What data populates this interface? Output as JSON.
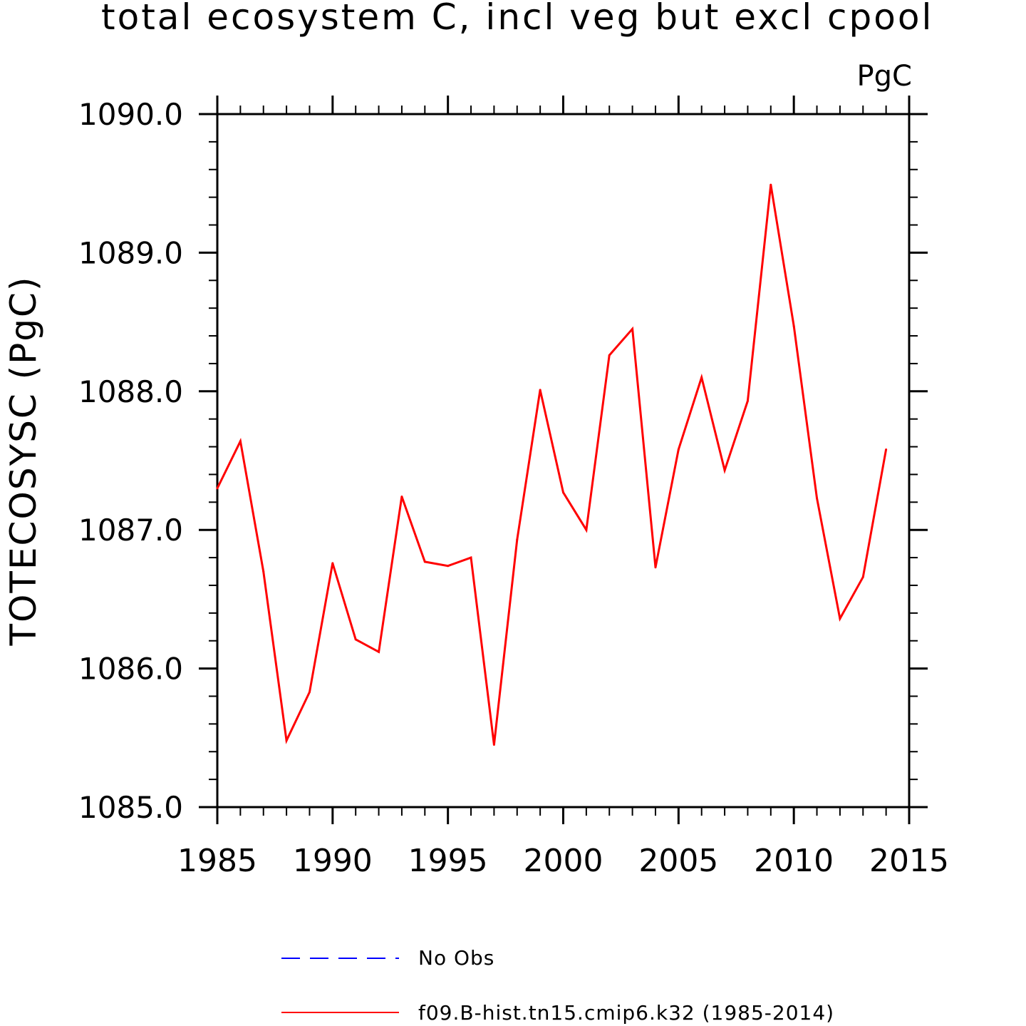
{
  "chart_data": {
    "type": "line",
    "title": "total ecosystem C, incl veg but excl cpool",
    "units_label": "PgC",
    "ylabel": "TOTECOSYSC  (PgC)",
    "xlabel": "",
    "xlim": [
      1985,
      2015
    ],
    "ylim": [
      1085.0,
      1090.0
    ],
    "x_ticks": [
      "1985",
      "1990",
      "1995",
      "2000",
      "2005",
      "2010",
      "2015"
    ],
    "y_ticks": [
      "1085.0",
      "1086.0",
      "1087.0",
      "1088.0",
      "1089.0",
      "1090.0"
    ],
    "legend": [
      {
        "label": "No Obs",
        "color": "#0000ff",
        "style": "dashed"
      },
      {
        "label": "f09.B-hist.tn15.cmip6.k32 (1985-2014)",
        "color": "#ff0000",
        "style": "solid"
      }
    ],
    "series": [
      {
        "name": "f09.B-hist.tn15.cmip6.k32 (1985-2014)",
        "color": "#ff0000",
        "x": [
          1985,
          1986,
          1987,
          1988,
          1989,
          1990,
          1991,
          1992,
          1993,
          1994,
          1995,
          1996,
          1997,
          1998,
          1999,
          2000,
          2001,
          2002,
          2003,
          2004,
          2005,
          2006,
          2007,
          2008,
          2009,
          2010,
          2011,
          2012,
          2013,
          2014
        ],
        "values": [
          1087.3,
          1087.64,
          1086.7,
          1085.48,
          1085.83,
          1086.76,
          1086.21,
          1086.12,
          1087.24,
          1086.77,
          1086.74,
          1086.8,
          1085.45,
          1086.93,
          1088.01,
          1087.27,
          1087.0,
          1088.26,
          1088.45,
          1086.73,
          1087.58,
          1088.1,
          1087.43,
          1087.93,
          1089.49,
          1088.47,
          1087.23,
          1086.36,
          1086.66,
          1087.58
        ]
      }
    ]
  }
}
